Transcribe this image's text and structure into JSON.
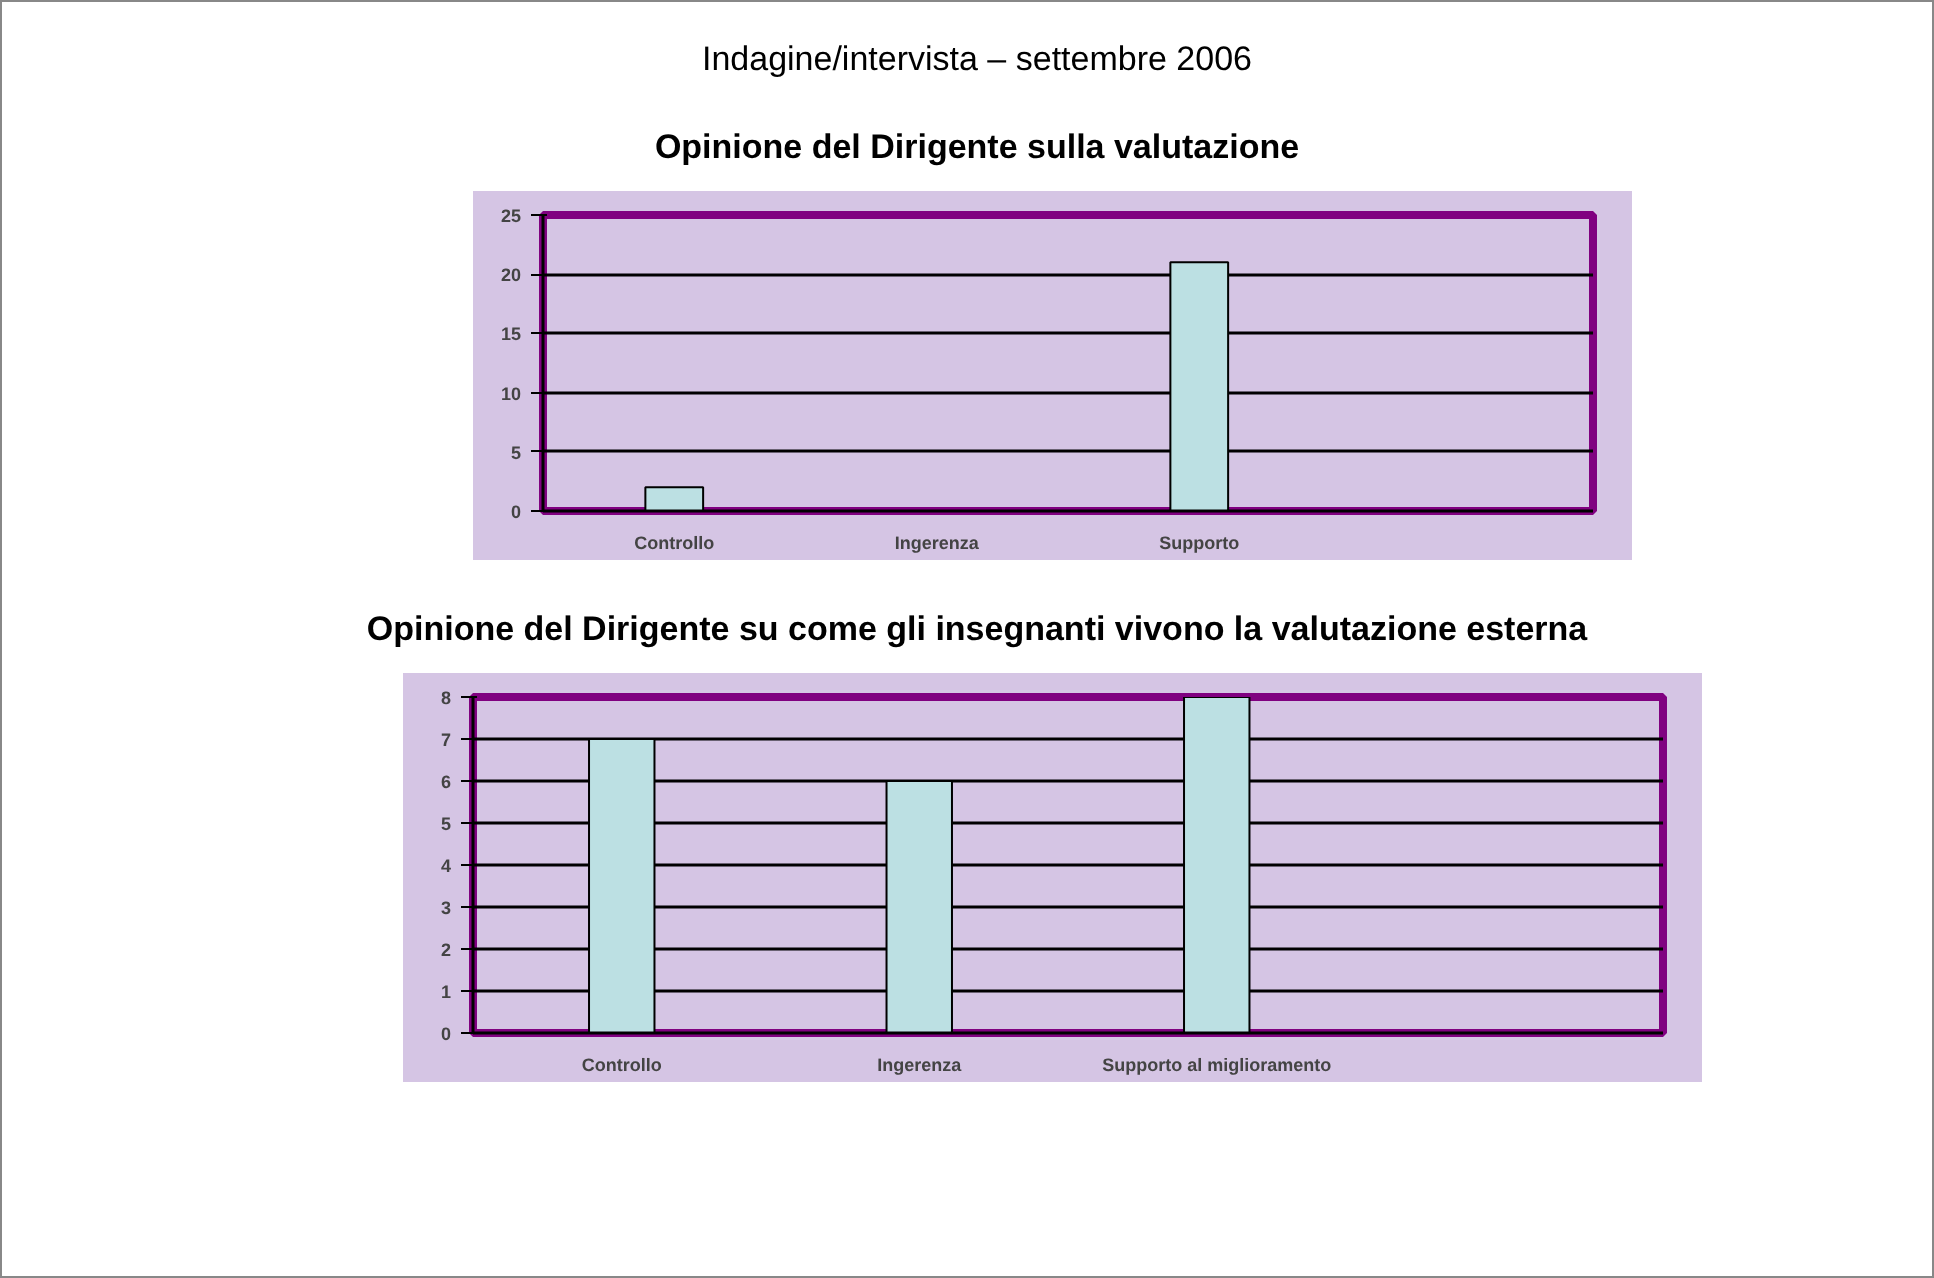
{
  "chart_data": [
    {
      "type": "bar",
      "annotations": [
        "Indagine/intervista – settembre 2006"
      ],
      "title": "Opinione del Dirigente sulla valutazione",
      "categories": [
        "Controllo",
        "Ingerenza",
        "Supporto",
        null
      ],
      "values": [
        2,
        0,
        21,
        null
      ],
      "color": "#bce0e3",
      "ylim": [
        0,
        25
      ],
      "yticks": [
        0,
        5,
        10,
        15,
        20,
        25
      ],
      "grid": "y"
    },
    {
      "type": "bar",
      "title": "Opinione del Dirigente su come gli insegnanti vivono la valutazione esterna",
      "categories": [
        "Controllo",
        "Ingerenza",
        "Supporto al miglioramento",
        null
      ],
      "values": [
        7,
        6,
        8,
        null
      ],
      "color": "#bce0e3",
      "ylim": [
        0,
        8
      ],
      "yticks": [
        0,
        1,
        2,
        3,
        4,
        5,
        6,
        7,
        8
      ],
      "grid": "y"
    }
  ]
}
